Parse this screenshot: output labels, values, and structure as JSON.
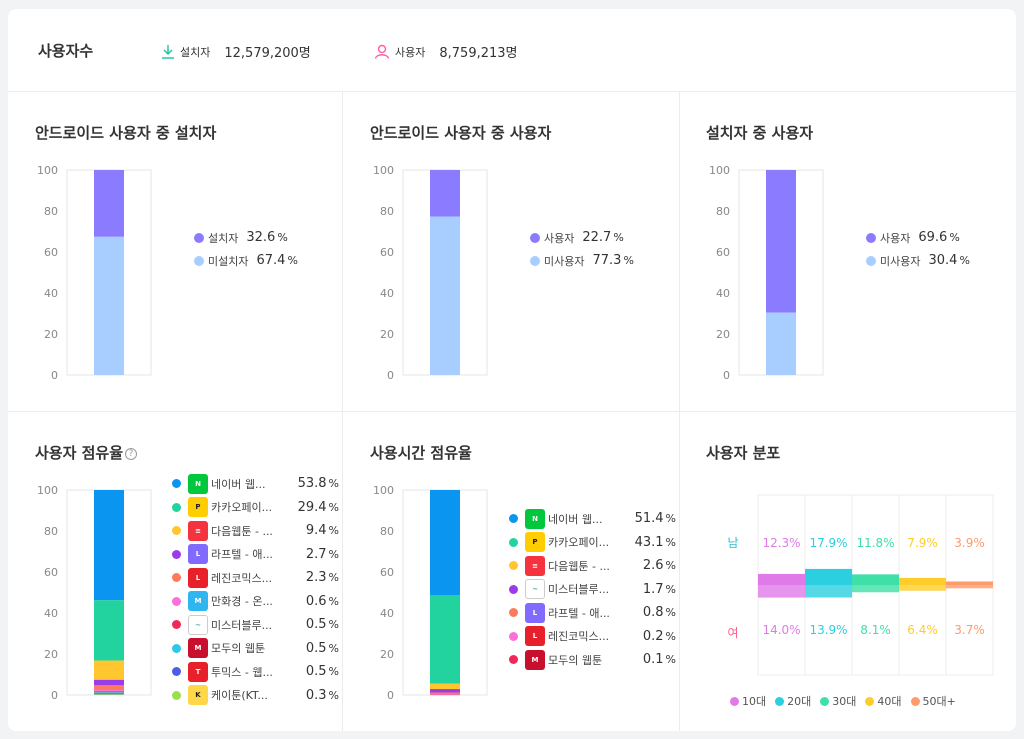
{
  "header": {
    "title": "사용자수",
    "installs_label": "설치자",
    "installs_value": "12,579,200명",
    "users_label": "사용자",
    "users_value": "8,759,213명"
  },
  "panels": {
    "p1_title": "안드로이드 사용자 중 설치자",
    "p2_title": "안드로이드 사용자 중 사용자",
    "p3_title": "설치자 중 사용자",
    "p4_title": "사용자 점유율",
    "p5_title": "사용시간 점유율",
    "p6_title": "사용자 분포"
  },
  "colors": {
    "primary": "#8b7bff",
    "secondary": "#a8ceff"
  },
  "chart_data": [
    {
      "type": "bar",
      "stacked": true,
      "ylim": [
        0,
        100
      ],
      "yticks": [
        "0",
        "20",
        "40",
        "60",
        "80",
        "100"
      ],
      "series": [
        {
          "name": "설치자",
          "value": 32.6,
          "value_label": "32.6",
          "unit": "%",
          "color": "#8b7bff"
        },
        {
          "name": "미설치자",
          "value": 67.4,
          "value_label": "67.4",
          "unit": "%",
          "color": "#a8ceff"
        }
      ]
    },
    {
      "type": "bar",
      "stacked": true,
      "ylim": [
        0,
        100
      ],
      "yticks": [
        "0",
        "20",
        "40",
        "60",
        "80",
        "100"
      ],
      "series": [
        {
          "name": "사용자",
          "value": 22.7,
          "value_label": "22.7",
          "unit": "%",
          "color": "#8b7bff"
        },
        {
          "name": "미사용자",
          "value": 77.3,
          "value_label": "77.3",
          "unit": "%",
          "color": "#a8ceff"
        }
      ]
    },
    {
      "type": "bar",
      "stacked": true,
      "ylim": [
        0,
        100
      ],
      "yticks": [
        "0",
        "20",
        "40",
        "60",
        "80",
        "100"
      ],
      "series": [
        {
          "name": "사용자",
          "value": 69.6,
          "value_label": "69.6",
          "unit": "%",
          "color": "#8b7bff"
        },
        {
          "name": "미사용자",
          "value": 30.4,
          "value_label": "30.4",
          "unit": "%",
          "color": "#a8ceff"
        }
      ]
    },
    {
      "type": "bar",
      "stacked": true,
      "ylim": [
        0,
        100
      ],
      "yticks": [
        "0",
        "20",
        "40",
        "60",
        "80",
        "100"
      ],
      "series": [
        {
          "name": "네이버 웹...",
          "value": 53.8,
          "value_label": "53.8",
          "unit": "%",
          "color": "#0a96f0",
          "icon": "naver-webtoon-icon",
          "icon_bg": "#00c73c",
          "icon_text": "N"
        },
        {
          "name": "카카오페이...",
          "value": 29.4,
          "value_label": "29.4",
          "unit": "%",
          "color": "#22d3a0",
          "icon": "kakaopage-icon",
          "icon_bg": "#ffcd00",
          "icon_text": "P"
        },
        {
          "name": "다음웹툰 - ...",
          "value": 9.4,
          "value_label": "9.4",
          "unit": "%",
          "color": "#ffc62f",
          "icon": "daum-webtoon-icon",
          "icon_bg": "#f5333f",
          "icon_text": "≡"
        },
        {
          "name": "라프텔 - 애...",
          "value": 2.7,
          "value_label": "2.7",
          "unit": "%",
          "color": "#9a3de8",
          "icon": "laftel-icon",
          "icon_bg": "#816bff",
          "icon_text": "L"
        },
        {
          "name": "레진코믹스...",
          "value": 2.3,
          "value_label": "2.3",
          "unit": "%",
          "color": "#ff7a5c",
          "icon": "lezhin-icon",
          "icon_bg": "#e8202a",
          "icon_text": "L"
        },
        {
          "name": "만화경 - 온...",
          "value": 0.6,
          "value_label": "0.6",
          "unit": "%",
          "color": "#ff6fd8",
          "icon": "manhwakyung-icon",
          "icon_bg": "#2fb5f0",
          "icon_text": "M"
        },
        {
          "name": "미스터블루...",
          "value": 0.5,
          "value_label": "0.5",
          "unit": "%",
          "color": "#f0285a",
          "icon": "mrblue-icon",
          "icon_bg": "#ffffff",
          "icon_text": "~"
        },
        {
          "name": "모두의 웹툰",
          "value": 0.5,
          "value_label": "0.5",
          "unit": "%",
          "color": "#2dc8e8",
          "icon": "modu-webtoon-icon",
          "icon_bg": "#c8102e",
          "icon_text": "M"
        },
        {
          "name": "투믹스 - 웹...",
          "value": 0.5,
          "value_label": "0.5",
          "unit": "%",
          "color": "#4c5ee8",
          "icon": "toomics-icon",
          "icon_bg": "#e8202a",
          "icon_text": "T"
        },
        {
          "name": "케이툰(KT...",
          "value": 0.3,
          "value_label": "0.3",
          "unit": "%",
          "color": "#9ae04a",
          "icon": "ktoon-icon",
          "icon_bg": "#ffd84a",
          "icon_text": "K"
        }
      ]
    },
    {
      "type": "bar",
      "stacked": true,
      "ylim": [
        0,
        100
      ],
      "yticks": [
        "0",
        "20",
        "40",
        "60",
        "80",
        "100"
      ],
      "series": [
        {
          "name": "네이버 웹...",
          "value": 51.4,
          "value_label": "51.4",
          "unit": "%",
          "color": "#0a96f0",
          "icon": "naver-webtoon-icon",
          "icon_bg": "#00c73c",
          "icon_text": "N"
        },
        {
          "name": "카카오페이...",
          "value": 43.1,
          "value_label": "43.1",
          "unit": "%",
          "color": "#22d3a0",
          "icon": "kakaopage-icon",
          "icon_bg": "#ffcd00",
          "icon_text": "P"
        },
        {
          "name": "다음웹툰 - ...",
          "value": 2.6,
          "value_label": "2.6",
          "unit": "%",
          "color": "#ffc62f",
          "icon": "daum-webtoon-icon",
          "icon_bg": "#f5333f",
          "icon_text": "≡"
        },
        {
          "name": "미스터블루...",
          "value": 1.7,
          "value_label": "1.7",
          "unit": "%",
          "color": "#9a3de8",
          "icon": "mrblue-icon",
          "icon_bg": "#ffffff",
          "icon_text": "~"
        },
        {
          "name": "라프텔 - 애...",
          "value": 0.8,
          "value_label": "0.8",
          "unit": "%",
          "color": "#ff7a5c",
          "icon": "laftel-icon",
          "icon_bg": "#816bff",
          "icon_text": "L"
        },
        {
          "name": "레진코믹스...",
          "value": 0.2,
          "value_label": "0.2",
          "unit": "%",
          "color": "#ff6fd8",
          "icon": "lezhin-icon",
          "icon_bg": "#e8202a",
          "icon_text": "L"
        },
        {
          "name": "모두의 웹툰",
          "value": 0.1,
          "value_label": "0.1",
          "unit": "%",
          "color": "#f0285a",
          "icon": "modu-webtoon-icon",
          "icon_bg": "#c8102e",
          "icon_text": "M"
        }
      ]
    },
    {
      "type": "bar",
      "diverging": true,
      "categories": [
        "10대",
        "20대",
        "30대",
        "40대",
        "50대+"
      ],
      "colors": [
        "#e07ae8",
        "#2bcfe0",
        "#3ee0a8",
        "#ffcd2a",
        "#ff9a6a"
      ],
      "male_label": "남",
      "female_label": "여",
      "male": [
        12.3,
        17.9,
        11.8,
        7.9,
        3.9
      ],
      "female": [
        14.0,
        13.9,
        8.1,
        6.4,
        3.7
      ],
      "male_labels": [
        "12.3%",
        "17.9%",
        "11.8%",
        "7.9%",
        "3.9%"
      ],
      "female_labels": [
        "14.0%",
        "13.9%",
        "8.1%",
        "6.4%",
        "3.7%"
      ]
    }
  ]
}
